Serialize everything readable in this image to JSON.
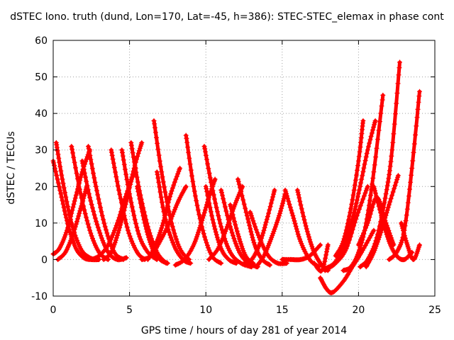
{
  "chart_data": {
    "type": "scatter",
    "title": "dSTEC Iono. truth (dund, Lon=170, Lat=-45, h=386): STEC-STEC_elemax in phase cont",
    "xlabel": "GPS time / hours of day 281 of year 2014",
    "ylabel": "dSTEC  / TECUs",
    "xlim": [
      0,
      25
    ],
    "ylim": [
      -10,
      60
    ],
    "xticks": [
      "0",
      "5",
      "10",
      "15",
      "20",
      "25"
    ],
    "yticks": [
      "-10",
      "0",
      "10",
      "20",
      "30",
      "40",
      "50",
      "60"
    ],
    "grid": true,
    "marker": "+",
    "color": "#ff0000",
    "series": [
      {
        "x": [
          0.0,
          0.5,
          1.0,
          1.5,
          2.0,
          2.5,
          3.0
        ],
        "y": [
          27,
          18,
          9,
          3,
          0.5,
          0,
          0
        ]
      },
      {
        "x": [
          0.2,
          0.6,
          1.2,
          1.8,
          2.4,
          3.0
        ],
        "y": [
          32,
          22,
          10,
          3,
          0.5,
          0
        ]
      },
      {
        "x": [
          0.0,
          0.4,
          0.9,
          1.4,
          1.9,
          2.4
        ],
        "y": [
          1.5,
          3,
          8,
          16,
          24,
          30
        ]
      },
      {
        "x": [
          0.3,
          0.8,
          1.3,
          1.8,
          2.2
        ],
        "y": [
          0,
          2,
          7,
          14,
          20
        ]
      },
      {
        "x": [
          1.2,
          1.8,
          2.4,
          3.0,
          3.6
        ],
        "y": [
          31,
          18,
          8,
          2,
          0
        ]
      },
      {
        "x": [
          1.9,
          2.4,
          3.0,
          3.6,
          4.2,
          4.8
        ],
        "y": [
          27,
          17,
          8,
          2,
          0,
          0.5
        ]
      },
      {
        "x": [
          2.3,
          2.8,
          3.4,
          4.0,
          4.6
        ],
        "y": [
          31,
          20,
          9,
          2,
          0
        ]
      },
      {
        "x": [
          2.5,
          3.0,
          3.6,
          4.2,
          4.8,
          5.4
        ],
        "y": [
          0,
          1,
          4,
          10,
          18,
          25
        ]
      },
      {
        "x": [
          3.8,
          4.3,
          4.9,
          5.5,
          6.0
        ],
        "y": [
          30,
          19,
          8,
          2,
          0
        ]
      },
      {
        "x": [
          4.5,
          5.0,
          5.6,
          6.2,
          6.8
        ],
        "y": [
          30,
          18,
          7,
          2,
          0
        ]
      },
      {
        "x": [
          3.3,
          3.8,
          4.3,
          4.8,
          5.3,
          5.8
        ],
        "y": [
          0,
          2,
          8,
          16,
          25,
          32
        ]
      },
      {
        "x": [
          5.1,
          5.6,
          6.2,
          6.8,
          7.4
        ],
        "y": [
          32,
          20,
          9,
          2,
          -1
        ]
      },
      {
        "x": [
          5.5,
          6.0,
          6.5,
          7.0,
          7.5
        ],
        "y": [
          20,
          10,
          3,
          0,
          -1
        ]
      },
      {
        "x": [
          6.6,
          7.1,
          7.7,
          8.3,
          8.9
        ],
        "y": [
          38,
          24,
          11,
          3,
          0
        ]
      },
      {
        "x": [
          6.2,
          6.7,
          7.2,
          7.7,
          8.3
        ],
        "y": [
          0,
          4,
          10,
          18,
          25
        ]
      },
      {
        "x": [
          5.8,
          6.4,
          7.0,
          7.6,
          8.2,
          8.7
        ],
        "y": [
          0,
          1,
          5,
          10,
          16,
          20
        ]
      },
      {
        "x": [
          6.8,
          7.3,
          7.9,
          8.5,
          9.0
        ],
        "y": [
          24,
          12,
          4,
          0,
          -1
        ]
      },
      {
        "x": [
          8.7,
          9.2,
          9.8,
          10.4,
          11.0
        ],
        "y": [
          34,
          20,
          8,
          1,
          -1
        ]
      },
      {
        "x": [
          9.9,
          10.4,
          11.0,
          11.6,
          12.3,
          13.0
        ],
        "y": [
          31,
          20,
          9,
          2,
          -1,
          -2
        ]
      },
      {
        "x": [
          8.0,
          8.6,
          9.2,
          9.7,
          10.2,
          10.6
        ],
        "y": [
          -1.5,
          0,
          4,
          10,
          17,
          22
        ]
      },
      {
        "x": [
          10.0,
          10.5,
          11.0,
          11.5,
          12.0
        ],
        "y": [
          20,
          10,
          3,
          0,
          -1
        ]
      },
      {
        "x": [
          10.2,
          10.8,
          11.4,
          11.9,
          12.4
        ],
        "y": [
          0,
          3,
          9,
          15,
          20
        ]
      },
      {
        "x": [
          11.0,
          11.6,
          12.2,
          12.8,
          13.4
        ],
        "y": [
          19,
          9,
          2,
          -1,
          -2
        ]
      },
      {
        "x": [
          11.6,
          12.1,
          12.6,
          13.1
        ],
        "y": [
          15,
          7,
          1,
          -1
        ]
      },
      {
        "x": [
          12.1,
          12.7,
          13.2,
          13.7,
          14.2
        ],
        "y": [
          22,
          12,
          4,
          0,
          -1.5
        ]
      },
      {
        "x": [
          12.5,
          13.0,
          13.5,
          14.0,
          14.5
        ],
        "y": [
          -1,
          0,
          4,
          11,
          19
        ]
      },
      {
        "x": [
          12.9,
          13.5,
          14.1,
          14.7,
          15.3
        ],
        "y": [
          13,
          6,
          1,
          -1,
          -1
        ]
      },
      {
        "x": [
          13.3,
          13.8,
          14.3,
          14.8,
          15.2
        ],
        "y": [
          -2,
          1,
          6,
          12,
          18
        ]
      },
      {
        "x": [
          15.2,
          15.7,
          16.2,
          16.8,
          17.4
        ],
        "y": [
          19,
          12,
          5,
          0,
          -2
        ]
      },
      {
        "x": [
          15.0,
          15.6,
          16.2,
          16.8,
          17.5
        ],
        "y": [
          0,
          0,
          0,
          1,
          4
        ]
      },
      {
        "x": [
          16.0,
          16.5,
          17.0,
          17.5,
          18.0
        ],
        "y": [
          19,
          10,
          3,
          -1,
          -3
        ]
      },
      {
        "x": [
          17.1,
          17.6,
          18.0
        ],
        "y": [
          -1,
          -3,
          4
        ]
      },
      {
        "x": [
          17.8,
          18.4,
          19.0,
          19.6,
          20.1,
          20.6,
          21.1
        ],
        "y": [
          -2.5,
          -1,
          3,
          11,
          20,
          30,
          38
        ]
      },
      {
        "x": [
          17.8,
          18.5,
          19.2,
          19.9,
          20.6
        ],
        "y": [
          -3,
          -1,
          3,
          12,
          20
        ]
      },
      {
        "x": [
          17.5,
          17.9,
          18.3,
          19.0,
          19.6,
          20.2,
          21.0
        ],
        "y": [
          -5,
          -8,
          -9,
          -6,
          -2,
          2,
          8
        ]
      },
      {
        "x": [
          18.5,
          19.0,
          19.5,
          20.0,
          20.3
        ],
        "y": [
          1,
          5,
          14,
          27,
          38
        ]
      },
      {
        "x": [
          19.0,
          19.5,
          20.0,
          20.5,
          21.0,
          21.6
        ],
        "y": [
          -3,
          -2,
          2,
          10,
          24,
          45
        ]
      },
      {
        "x": [
          20.1,
          20.6,
          21.2,
          21.8,
          22.2,
          22.7
        ],
        "y": [
          -2,
          0,
          6,
          18,
          30,
          54
        ]
      },
      {
        "x": [
          20.5,
          21.0,
          21.5,
          22.0,
          22.6
        ],
        "y": [
          -2,
          2,
          8,
          15,
          23
        ]
      },
      {
        "x": [
          21.0,
          21.5,
          22.0,
          22.5,
          23.0,
          23.5
        ],
        "y": [
          20,
          12,
          5,
          1,
          0,
          2
        ]
      },
      {
        "x": [
          20.0,
          20.6,
          21.2,
          21.8,
          22.3
        ],
        "y": [
          4,
          10,
          17,
          10,
          4
        ]
      },
      {
        "x": [
          22.0,
          22.5,
          23.0,
          23.5,
          24.0
        ],
        "y": [
          0,
          2,
          8,
          25,
          46
        ]
      },
      {
        "x": [
          22.8,
          23.2,
          23.6,
          24.0
        ],
        "y": [
          10,
          4,
          0,
          4
        ]
      }
    ]
  }
}
